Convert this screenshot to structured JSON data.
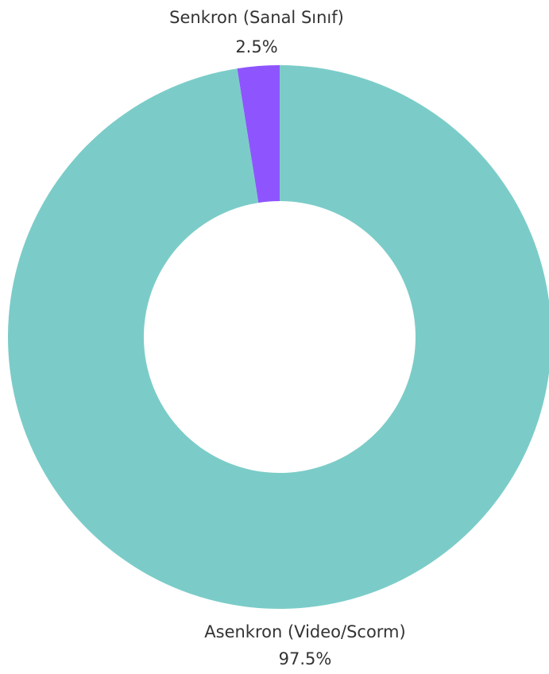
{
  "chart_data": {
    "type": "pie",
    "donut": true,
    "title": "",
    "slices": [
      {
        "label": "Senkron (Sanal Sınıf)",
        "value": 2.5,
        "value_label": "2.5%",
        "color": "#8E55FE"
      },
      {
        "label": "Asenkron (Video/Scorm)",
        "value": 97.5,
        "value_label": "97.5%",
        "color": "#7BCCC8"
      }
    ]
  }
}
